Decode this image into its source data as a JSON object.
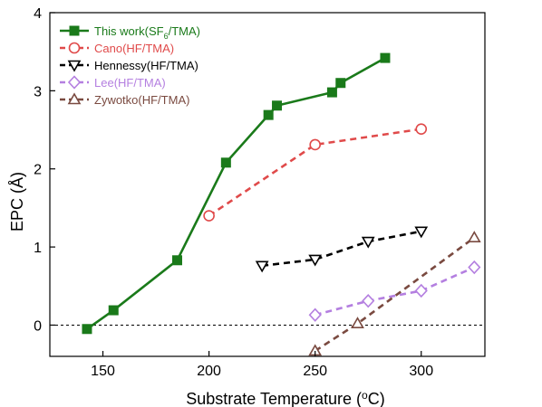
{
  "chart_data": {
    "type": "line",
    "xlabel": "Substrate Temperature (",
    "xlabel_sup": "o",
    "xlabel_end": "C)",
    "ylabel": "EPC (Å)",
    "xlim": [
      125,
      330
    ],
    "ylim": [
      -0.4,
      4
    ],
    "xticks": [
      150,
      200,
      250,
      300
    ],
    "yticks": [
      0,
      1,
      2,
      3,
      4
    ],
    "x_tick_labels": [
      "150",
      "200",
      "250",
      "300"
    ],
    "y_tick_labels": [
      "0",
      "1",
      "2",
      "3",
      "4"
    ],
    "reference_line_y": 0,
    "legend_position": "top-left",
    "series": [
      {
        "name": "This work(SF",
        "name_sub": "6",
        "name_end": "/TMA)",
        "color": "#1a7a1a",
        "marker": "square-filled",
        "line": "solid",
        "x": [
          142.5,
          155,
          185,
          208,
          228,
          232,
          258,
          262,
          283
        ],
        "y": [
          -0.05,
          0.19,
          0.83,
          2.08,
          2.69,
          2.81,
          2.98,
          3.1,
          3.42
        ]
      },
      {
        "name": "Cano(HF/TMA)",
        "color": "#e04a4a",
        "marker": "circle-open",
        "line": "dashed",
        "x": [
          200,
          250,
          300
        ],
        "y": [
          1.4,
          2.31,
          2.51
        ]
      },
      {
        "name": "Hennessy(HF/TMA)",
        "color": "#000000",
        "marker": "triangle-down-open",
        "line": "dashed",
        "x": [
          225,
          250,
          275,
          300
        ],
        "y": [
          0.76,
          0.84,
          1.07,
          1.2
        ]
      },
      {
        "name": "Lee(HF/TMA)",
        "color": "#b47fe0",
        "marker": "diamond-open",
        "line": "dashed",
        "x": [
          250,
          275,
          300,
          325
        ],
        "y": [
          0.13,
          0.31,
          0.44,
          0.74
        ]
      },
      {
        "name": "Zywotko(HF/TMA)",
        "color": "#7a4a40",
        "marker": "triangle-up-open",
        "line": "dashed",
        "x": [
          250,
          270,
          325
        ],
        "y": [
          -0.33,
          0.02,
          1.12
        ]
      }
    ]
  }
}
